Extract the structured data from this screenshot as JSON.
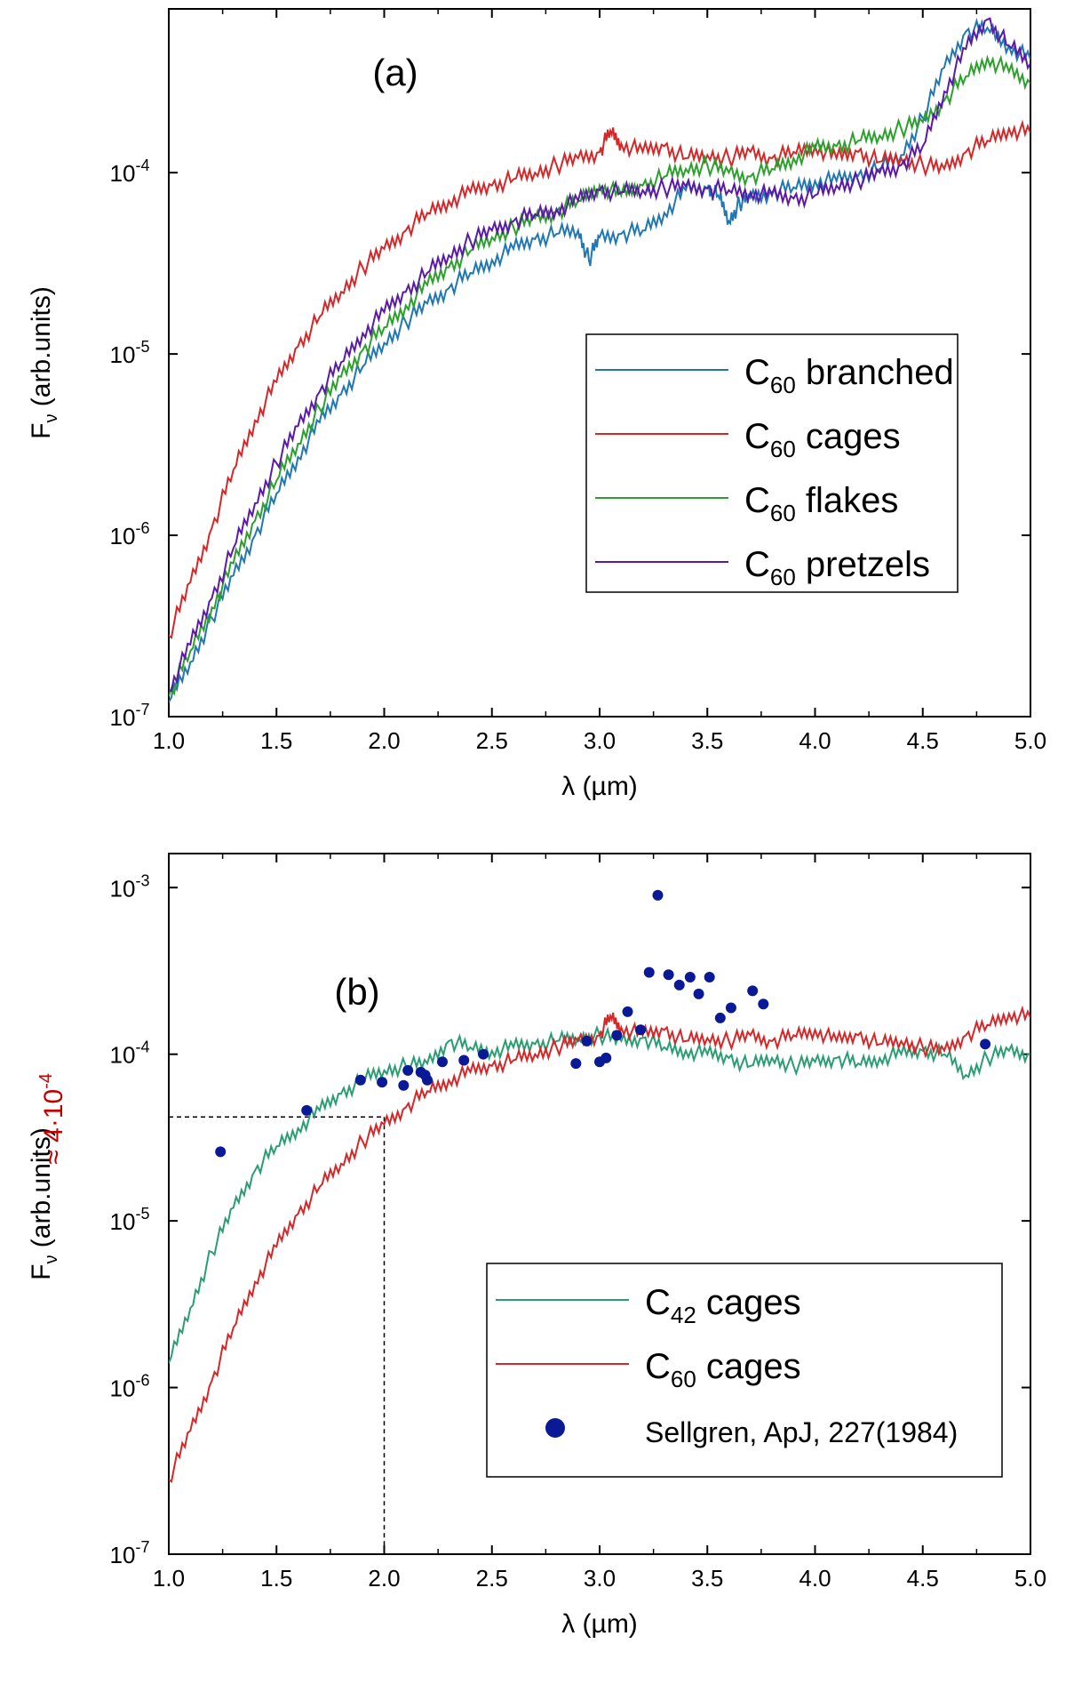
{
  "chart_data": [
    {
      "panel_label": "(a)",
      "type": "line",
      "xlabel": "λ (µm)",
      "ylabel_main": "F",
      "ylabel_sub": "ν",
      "ylabel_rest": " (arb.units)",
      "xlim": [
        1.0,
        5.0
      ],
      "ylim": [
        1e-07,
        0.0008
      ],
      "yscale": "log",
      "x_ticks": [
        "1.0",
        "1.5",
        "2.0",
        "2.5",
        "3.0",
        "3.5",
        "4.0",
        "4.5",
        "5.0"
      ],
      "y_ticks": [
        {
          "base": "10",
          "exp": "-7"
        },
        {
          "base": "10",
          "exp": "-6"
        },
        {
          "base": "10",
          "exp": "-5"
        },
        {
          "base": "10",
          "exp": "-4"
        }
      ],
      "legend_placement": "center-right",
      "series": [
        {
          "name_main": "C",
          "name_sub": "60",
          "name_rest": " branched",
          "color": "#1f77b4",
          "x": [
            1.0,
            1.1,
            1.2,
            1.3,
            1.4,
            1.5,
            1.6,
            1.7,
            1.8,
            1.9,
            2.0,
            2.1,
            2.2,
            2.3,
            2.4,
            2.5,
            2.6,
            2.7,
            2.8,
            2.9,
            2.95,
            3.0,
            3.1,
            3.2,
            3.3,
            3.4,
            3.5,
            3.55,
            3.6,
            3.65,
            3.7,
            3.8,
            3.9,
            4.0,
            4.1,
            4.2,
            4.3,
            4.4,
            4.5,
            4.6,
            4.7,
            4.8,
            4.9,
            5.0
          ],
          "y": [
            1.2e-07,
            2e-07,
            3.5e-07,
            6e-07,
            1e-06,
            1.7e-06,
            2.7e-06,
            4.2e-06,
            6e-06,
            8.5e-06,
            1.15e-05,
            1.5e-05,
            1.9e-05,
            2.3e-05,
            2.8e-05,
            3.3e-05,
            3.8e-05,
            4.3e-05,
            4.6e-05,
            4.8e-05,
            3.3e-05,
            4.4e-05,
            4.6e-05,
            4.8e-05,
            6e-05,
            8e-05,
            8.2e-05,
            7.5e-05,
            5.4e-05,
            6.8e-05,
            7.3e-05,
            7.8e-05,
            8.3e-05,
            9e-05,
            9e-05,
            9.6e-05,
            0.000105,
            0.000125,
            0.0002,
            0.00038,
            0.0006,
            0.00063,
            0.0005,
            0.00042
          ]
        },
        {
          "name_main": "C",
          "name_sub": "60",
          "name_rest": " cages",
          "color": "#d62728",
          "x": [
            1.0,
            1.1,
            1.2,
            1.3,
            1.4,
            1.5,
            1.6,
            1.7,
            1.8,
            1.9,
            2.0,
            2.1,
            2.2,
            2.3,
            2.4,
            2.5,
            2.6,
            2.7,
            2.8,
            2.9,
            3.0,
            3.05,
            3.1,
            3.2,
            3.3,
            3.4,
            3.5,
            3.6,
            3.7,
            3.8,
            3.9,
            4.0,
            4.1,
            4.2,
            4.3,
            4.4,
            4.5,
            4.6,
            4.7,
            4.8,
            4.9,
            5.0
          ],
          "y": [
            2.8e-07,
            5.5e-07,
            1.1e-06,
            2.3e-06,
            4.3e-06,
            7e-06,
            1.1e-05,
            1.6e-05,
            2.2e-05,
            3e-05,
            3.8e-05,
            4.8e-05,
            6e-05,
            7e-05,
            7.8e-05,
            8.5e-05,
            9.2e-05,
            0.0001,
            0.00011,
            0.00012,
            0.00013,
            0.00017,
            0.000145,
            0.00013,
            0.00014,
            0.00012,
            0.000125,
            0.00012,
            0.00013,
            0.00012,
            0.00013,
            0.00014,
            0.00012,
            0.00013,
            0.000115,
            0.00012,
            0.00011,
            0.000105,
            0.00013,
            0.00015,
            0.000175,
            0.000165
          ]
        },
        {
          "name_main": "C",
          "name_sub": "60",
          "name_rest": " flakes",
          "color": "#2ca02c",
          "x": [
            1.0,
            1.1,
            1.2,
            1.3,
            1.4,
            1.5,
            1.6,
            1.7,
            1.8,
            1.9,
            2.0,
            2.1,
            2.2,
            2.3,
            2.4,
            2.5,
            2.6,
            2.7,
            2.8,
            2.9,
            3.0,
            3.1,
            3.2,
            3.3,
            3.4,
            3.5,
            3.6,
            3.7,
            3.8,
            3.9,
            4.0,
            4.1,
            4.2,
            4.3,
            4.4,
            4.5,
            4.6,
            4.7,
            4.8,
            4.9,
            5.0
          ],
          "y": [
            1.3e-07,
            2.3e-07,
            4e-07,
            7e-07,
            1.2e-06,
            2e-06,
            3.2e-06,
            5e-06,
            7.5e-06,
            1.05e-05,
            1.4e-05,
            1.85e-05,
            2.4e-05,
            3e-05,
            3.7e-05,
            4.4e-05,
            5e-05,
            5.6e-05,
            6.1e-05,
            7e-05,
            8.5e-05,
            7.5e-05,
            8.5e-05,
            9.5e-05,
            0.000105,
            0.00011,
            0.0001,
            9.5e-05,
            0.000105,
            0.00012,
            0.000135,
            0.00014,
            0.00015,
            0.00016,
            0.000175,
            0.00019,
            0.00025,
            0.00034,
            0.00043,
            0.00036,
            0.00031
          ]
        },
        {
          "name_main": "C",
          "name_sub": "60",
          "name_rest": " pretzels",
          "color": "#5b1aa6",
          "x": [
            1.0,
            1.1,
            1.2,
            1.3,
            1.4,
            1.5,
            1.6,
            1.7,
            1.8,
            1.9,
            2.0,
            2.1,
            2.2,
            2.3,
            2.4,
            2.5,
            2.6,
            2.7,
            2.8,
            2.9,
            3.0,
            3.1,
            3.2,
            3.3,
            3.4,
            3.5,
            3.6,
            3.7,
            3.8,
            3.9,
            4.0,
            4.1,
            4.2,
            4.3,
            4.4,
            4.5,
            4.6,
            4.7,
            4.8,
            4.9,
            5.0
          ],
          "y": [
            1.4e-07,
            2.5e-07,
            4.5e-07,
            8.5e-07,
            1.5e-06,
            2.5e-06,
            4e-06,
            6.2e-06,
            9e-06,
            1.3e-05,
            1.7e-05,
            2.2e-05,
            2.8e-05,
            3.5e-05,
            4.2e-05,
            4.8e-05,
            5.4e-05,
            5.9e-05,
            6.3e-05,
            7e-05,
            8e-05,
            7.8e-05,
            8e-05,
            8.2e-05,
            8.4e-05,
            8.2e-05,
            8e-05,
            7.8e-05,
            7.5e-05,
            7.2e-05,
            7.5e-05,
            8.5e-05,
            9e-05,
            0.0001,
            0.00011,
            0.00014,
            0.00028,
            0.00048,
            0.0007,
            0.0005,
            0.0004
          ]
        }
      ]
    },
    {
      "panel_label": "(b)",
      "type": "line",
      "xlabel": "λ (µm)",
      "ylabel_main": "F",
      "ylabel_sub": "ν",
      "ylabel_rest": " (arb.units)",
      "xlim": [
        1.0,
        5.0
      ],
      "ylim": [
        1e-07,
        0.0016
      ],
      "yscale": "log",
      "x_ticks": [
        "1.0",
        "1.5",
        "2.0",
        "2.5",
        "3.0",
        "3.5",
        "4.0",
        "4.5",
        "5.0"
      ],
      "y_ticks": [
        {
          "base": "10",
          "exp": "-7"
        },
        {
          "base": "10",
          "exp": "-6"
        },
        {
          "base": "10",
          "exp": "-5"
        },
        {
          "base": "10",
          "exp": "-4"
        },
        {
          "base": "10",
          "exp": "-3"
        }
      ],
      "legend_placement": "bottom-right",
      "annotation": {
        "label": "≈ 4·10",
        "exp": "-4",
        "x": 2.0,
        "y": 4.2e-05,
        "color": "#c00000"
      },
      "series": [
        {
          "name_main": "C",
          "name_sub": "42",
          "name_rest": " cages",
          "color": "#2a9d72",
          "x": [
            1.0,
            1.1,
            1.2,
            1.3,
            1.4,
            1.5,
            1.6,
            1.7,
            1.8,
            1.9,
            2.0,
            2.1,
            2.2,
            2.3,
            2.4,
            2.5,
            2.6,
            2.7,
            2.8,
            2.9,
            3.0,
            3.1,
            3.2,
            3.3,
            3.4,
            3.5,
            3.6,
            3.7,
            3.8,
            3.9,
            4.0,
            4.1,
            4.2,
            4.3,
            4.4,
            4.5,
            4.6,
            4.7,
            4.8,
            4.9,
            5.0
          ],
          "y": [
            1.4e-06,
            3e-06,
            6.5e-06,
            1.2e-05,
            2e-05,
            2.8e-05,
            3.6e-05,
            4.6e-05,
            5.8e-05,
            7e-05,
            8e-05,
            8.5e-05,
            8.8e-05,
            0.00012,
            0.00011,
            0.000105,
            0.00011,
            0.000115,
            0.00012,
            0.000125,
            0.00013,
            0.00012,
            0.000125,
            0.00011,
            0.000105,
            0.0001,
            9.5e-05,
            8.5e-05,
            9.5e-05,
            8.5e-05,
            9e-05,
            9.5e-05,
            8.8e-05,
            9.5e-05,
            0.0001,
            0.000105,
            0.0001,
            7.5e-05,
            9.5e-05,
            0.000105,
            0.0001
          ]
        },
        {
          "name_main": "C",
          "name_sub": "60",
          "name_rest": " cages",
          "color": "#d62728",
          "x": [
            1.0,
            1.1,
            1.2,
            1.3,
            1.4,
            1.5,
            1.6,
            1.7,
            1.8,
            1.9,
            2.0,
            2.1,
            2.2,
            2.3,
            2.4,
            2.5,
            2.6,
            2.7,
            2.8,
            2.9,
            3.0,
            3.05,
            3.1,
            3.2,
            3.3,
            3.4,
            3.5,
            3.6,
            3.7,
            3.8,
            3.9,
            4.0,
            4.1,
            4.2,
            4.3,
            4.4,
            4.5,
            4.6,
            4.7,
            4.8,
            4.9,
            5.0
          ],
          "y": [
            2.8e-07,
            5.5e-07,
            1.1e-06,
            2.3e-06,
            4.3e-06,
            7e-06,
            1.1e-05,
            1.6e-05,
            2.2e-05,
            3e-05,
            3.8e-05,
            4.8e-05,
            6e-05,
            7e-05,
            7.8e-05,
            8.5e-05,
            9.2e-05,
            0.0001,
            0.00011,
            0.00012,
            0.00013,
            0.00017,
            0.000145,
            0.00013,
            0.00014,
            0.00012,
            0.000125,
            0.00012,
            0.00013,
            0.00012,
            0.00013,
            0.00014,
            0.00012,
            0.00013,
            0.000115,
            0.00012,
            0.00011,
            0.000105,
            0.00013,
            0.00015,
            0.000175,
            0.000165
          ]
        },
        {
          "name_main": "Sellgren, ApJ, 227(1984)",
          "name_sub": "",
          "name_rest": "",
          "color": "#0a1a96",
          "mode": "markers",
          "x": [
            1.24,
            1.64,
            1.89,
            1.99,
            2.09,
            2.11,
            2.17,
            2.19,
            2.2,
            2.27,
            2.37,
            2.46,
            2.89,
            2.94,
            3.0,
            3.03,
            3.08,
            3.13,
            3.19,
            3.23,
            3.27,
            3.32,
            3.37,
            3.42,
            3.46,
            3.51,
            3.56,
            3.61,
            3.71,
            3.76,
            4.79
          ],
          "y": [
            2.6e-05,
            4.6e-05,
            7e-05,
            6.8e-05,
            6.5e-05,
            8e-05,
            7.8e-05,
            7.5e-05,
            7e-05,
            9e-05,
            9.2e-05,
            0.0001,
            8.8e-05,
            0.00012,
            9e-05,
            9.5e-05,
            0.00013,
            0.00018,
            0.00014,
            0.00031,
            0.0009,
            0.0003,
            0.00026,
            0.00029,
            0.00023,
            0.00029,
            0.000165,
            0.00019,
            0.00024,
            0.0002,
            0.000115
          ]
        }
      ]
    }
  ]
}
